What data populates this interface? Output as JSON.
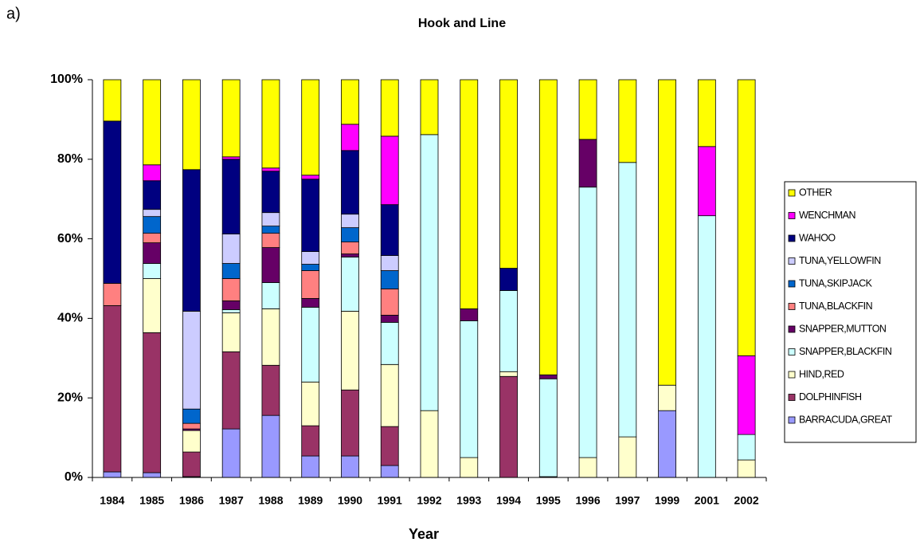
{
  "panel_label": "a)",
  "chart_data": {
    "type": "stacked_bar",
    "title": "Hook and Line",
    "xlabel": "Year",
    "categories": [
      "1984",
      "1985",
      "1986",
      "1987",
      "1988",
      "1989",
      "1990",
      "1991",
      "1992",
      "1993",
      "1994",
      "1995",
      "1996",
      "1997",
      "1999",
      "2001",
      "2002"
    ],
    "ylim": [
      0,
      100
    ],
    "yticks": [
      {
        "value": 0,
        "label": "0%"
      },
      {
        "value": 20,
        "label": "20%"
      },
      {
        "value": 40,
        "label": "40%"
      },
      {
        "value": 60,
        "label": "60%"
      },
      {
        "value": 80,
        "label": "80%"
      },
      {
        "value": 100,
        "label": "100%"
      }
    ],
    "grid": false,
    "legend": "right",
    "series": [
      {
        "name": "BARRACUDA,GREAT",
        "color": "#9999ff",
        "values": [
          1.4,
          1.2,
          0.2,
          12.2,
          15.6,
          5.4,
          5.4,
          3,
          0,
          0,
          0,
          0.2,
          0,
          0,
          16.8,
          0,
          0
        ]
      },
      {
        "name": "DOLPHINFISH",
        "color": "#993366",
        "values": [
          41.8,
          35.2,
          6.2,
          19.4,
          12.6,
          7.6,
          16.6,
          9.8,
          0,
          0,
          25.4,
          0,
          0,
          0,
          0,
          0,
          0
        ]
      },
      {
        "name": "HIND,RED",
        "color": "#ffffcc",
        "values": [
          0,
          13.6,
          5.4,
          9.8,
          14.2,
          11,
          19.8,
          15.6,
          16.8,
          5,
          1.2,
          0,
          5,
          10.2,
          6.4,
          0,
          4.4
        ]
      },
      {
        "name": "SNAPPER,BLACKFIN",
        "color": "#ccffff",
        "values": [
          0,
          3.8,
          0,
          0.8,
          6.6,
          18.8,
          13.6,
          10.6,
          69.4,
          34.4,
          20.4,
          24.6,
          68,
          69,
          0,
          65.8,
          6.4
        ]
      },
      {
        "name": "SNAPPER,MUTTON",
        "color": "#660066",
        "values": [
          0,
          5.2,
          0.4,
          2.2,
          8.8,
          2.2,
          0.8,
          1.8,
          0,
          3,
          0,
          1,
          12,
          0,
          0,
          0,
          0
        ]
      },
      {
        "name": "TUNA,BLACKFIN",
        "color": "#ff8080",
        "values": [
          5.6,
          2.4,
          1.4,
          5.6,
          3.6,
          7,
          3,
          6.6,
          0,
          0,
          0,
          0,
          0,
          0,
          0,
          0,
          0
        ]
      },
      {
        "name": "TUNA,SKIPJACK",
        "color": "#0066cc",
        "values": [
          0,
          4.2,
          3.6,
          3.8,
          1.8,
          1.6,
          3.6,
          4.6,
          0,
          0,
          0,
          0,
          0,
          0,
          0,
          0,
          0
        ]
      },
      {
        "name": "TUNA,YELLOWFIN",
        "color": "#ccccff",
        "values": [
          0,
          1.8,
          24.6,
          7.4,
          3.4,
          3.2,
          3.4,
          3.8,
          0,
          0,
          0,
          0,
          0,
          0,
          0,
          0,
          0
        ]
      },
      {
        "name": "WAHOO",
        "color": "#000080",
        "values": [
          40.8,
          7.2,
          35.6,
          18.8,
          10.4,
          18.2,
          16,
          12.8,
          0,
          0,
          5.6,
          0,
          0,
          0,
          0,
          0,
          0
        ]
      },
      {
        "name": "WENCHMAN",
        "color": "#ff00ff",
        "values": [
          0,
          4,
          0,
          0.6,
          0.8,
          1,
          6.6,
          17.2,
          0,
          0,
          0,
          0,
          0,
          0,
          0,
          17.4,
          19.8
        ]
      },
      {
        "name": "OTHER",
        "color": "#ffff00",
        "values": [
          10.4,
          21.4,
          22.6,
          19.4,
          22.2,
          24,
          11.2,
          14.2,
          13.8,
          57.6,
          47.4,
          74.2,
          15,
          20.8,
          76.8,
          16.8,
          69.4
        ]
      }
    ]
  }
}
